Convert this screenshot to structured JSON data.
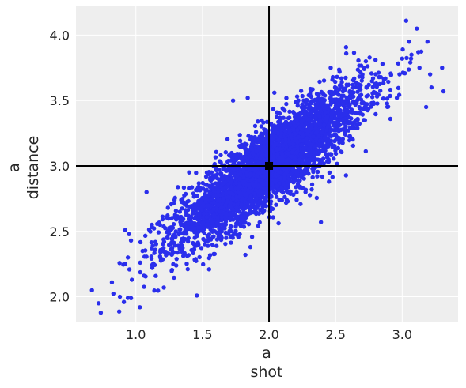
{
  "chart_data": {
    "type": "scatter",
    "title": "",
    "xlabel": [
      "a",
      "shot"
    ],
    "ylabel": [
      "a",
      "distance"
    ],
    "xlim": [
      0.55,
      3.42
    ],
    "ylim": [
      1.81,
      4.22
    ],
    "xticks": [
      1.0,
      1.5,
      2.0,
      2.5,
      3.0
    ],
    "yticks": [
      2.0,
      2.5,
      3.0,
      3.5,
      4.0
    ],
    "xtick_labels": [
      "1.0",
      "1.5",
      "2.0",
      "2.5",
      "3.0"
    ],
    "ytick_labels": [
      "2.0",
      "2.5",
      "3.0",
      "3.5",
      "4.0"
    ],
    "grid": true,
    "point_color": "#2a2eec",
    "reference": {
      "x": 2.0,
      "y": 3.0,
      "marker": "square",
      "color": "#000000"
    },
    "reference_lines": [
      {
        "orientation": "vertical",
        "value": 2.0,
        "color": "#000000"
      },
      {
        "orientation": "horizontal",
        "value": 3.0,
        "color": "#000000"
      }
    ],
    "distribution": {
      "kind": "bivariate-normal",
      "n_points": 4000,
      "mean": [
        2.0,
        3.0
      ],
      "std": [
        0.35,
        0.29
      ],
      "correlation": 0.87
    },
    "points": [
      [
        0.67,
        2.05
      ],
      [
        0.72,
        1.95
      ],
      [
        0.82,
        2.11
      ],
      [
        0.88,
        2.0
      ],
      [
        0.91,
        1.96
      ],
      [
        0.92,
        2.51
      ],
      [
        0.94,
        2.3
      ],
      [
        0.97,
        2.13
      ],
      [
        1.03,
        1.92
      ],
      [
        1.05,
        2.35
      ],
      [
        1.08,
        2.8
      ],
      [
        1.12,
        2.55
      ],
      [
        1.21,
        2.07
      ],
      [
        1.25,
        2.48
      ],
      [
        1.4,
        2.95
      ],
      [
        2.53,
        3.72
      ],
      [
        2.58,
        3.86
      ],
      [
        2.75,
        3.62
      ],
      [
        2.8,
        3.81
      ],
      [
        2.96,
        3.52
      ],
      [
        2.98,
        3.7
      ],
      [
        3.0,
        3.82
      ],
      [
        3.03,
        4.11
      ],
      [
        3.07,
        3.85
      ],
      [
        3.11,
        4.05
      ],
      [
        3.13,
        3.75
      ],
      [
        3.18,
        3.45
      ],
      [
        3.19,
        3.95
      ],
      [
        3.21,
        3.7
      ],
      [
        3.22,
        3.6
      ],
      [
        3.3,
        3.75
      ],
      [
        3.31,
        3.57
      ],
      [
        2.39,
        2.57
      ],
      [
        2.45,
        2.88
      ],
      [
        1.73,
        3.5
      ],
      [
        1.84,
        3.52
      ],
      [
        1.55,
        2.21
      ],
      [
        1.86,
        2.38
      ],
      [
        2.04,
        3.56
      ],
      [
        2.25,
        3.1
      ]
    ]
  }
}
